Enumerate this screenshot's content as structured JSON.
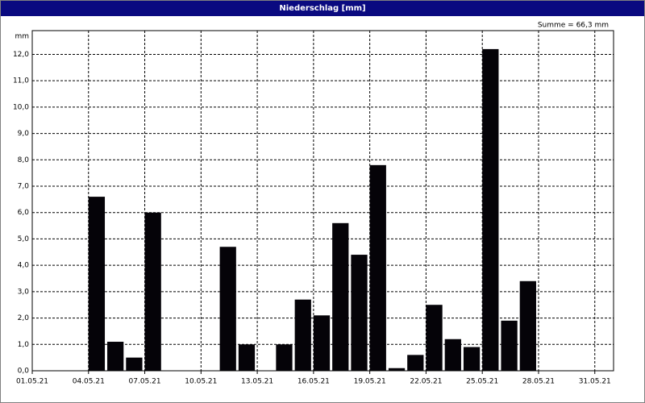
{
  "chart_data": {
    "type": "bar",
    "title": "Niederschlag [mm]",
    "y_label": "mm",
    "annotation": "Summe = 66,3 mm",
    "color": "#050308",
    "categories": [
      "01.05.21",
      null,
      null,
      "04.05.21",
      null,
      null,
      "07.05.21",
      null,
      null,
      "10.05.21",
      null,
      null,
      "13.05.21",
      null,
      null,
      "16.05.21",
      null,
      null,
      "19.05.21",
      null,
      null,
      "22.05.21",
      null,
      null,
      "25.05.21",
      null,
      null,
      "28.05.21",
      null,
      null,
      "31.05.21"
    ],
    "values": [
      null,
      null,
      null,
      6.6,
      1.1,
      0.5,
      6.0,
      null,
      null,
      null,
      4.7,
      1.0,
      null,
      1.0,
      2.7,
      2.1,
      5.6,
      4.4,
      7.8,
      0.1,
      0.6,
      2.5,
      1.2,
      0.9,
      12.2,
      1.9,
      3.4,
      null,
      null,
      null,
      null
    ],
    "ylim": [
      0,
      12.9
    ],
    "yticks": [
      {
        "value": 0,
        "label": "0,0"
      },
      {
        "value": 1,
        "label": "1,0"
      },
      {
        "value": 2,
        "label": "2,0"
      },
      {
        "value": 3,
        "label": "3,0"
      },
      {
        "value": 4,
        "label": "4,0"
      },
      {
        "value": 5,
        "label": "5,0"
      },
      {
        "value": 6,
        "label": "6,0"
      },
      {
        "value": 7,
        "label": "7,0"
      },
      {
        "value": 8,
        "label": "8,0"
      },
      {
        "value": 9,
        "label": "9,0"
      },
      {
        "value": 10,
        "label": "10,0"
      },
      {
        "value": 11,
        "label": "11,0"
      },
      {
        "value": 12,
        "label": "12,0"
      }
    ],
    "grid": true
  }
}
